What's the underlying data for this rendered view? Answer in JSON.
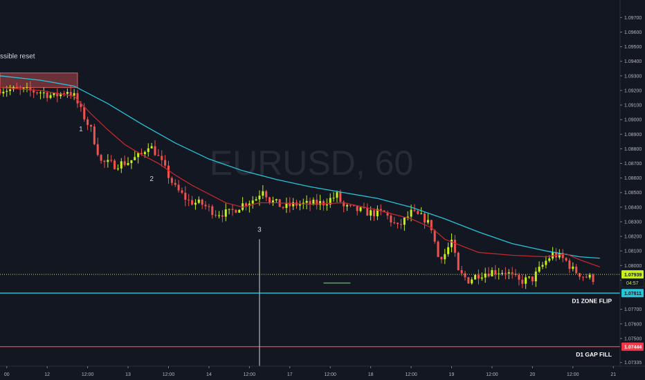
{
  "chart_data": {
    "type": "candlestick",
    "watermark": "EURUSD, 60",
    "y_ticks": [
      "1.09700",
      "1.09600",
      "1.09500",
      "1.09400",
      "1.09300",
      "1.09200",
      "1.09100",
      "1.09000",
      "1.08900",
      "1.08800",
      "1.08700",
      "1.08600",
      "1.08500",
      "1.08400",
      "1.08300",
      "1.08200",
      "1.08100",
      "1.08000",
      "1.07900",
      "1.07700",
      "1.07600",
      "1.07500",
      "1.07335"
    ],
    "y_tick_values": [
      1.097,
      1.096,
      1.095,
      1.094,
      1.093,
      1.092,
      1.091,
      1.09,
      1.089,
      1.088,
      1.087,
      1.086,
      1.085,
      1.084,
      1.083,
      1.082,
      1.081,
      1.08,
      1.079,
      1.077,
      1.076,
      1.075,
      1.07335
    ],
    "ylim": [
      1.0731,
      1.0982
    ],
    "x_ticks": [
      "00",
      "12",
      "12:00",
      "13",
      "12:00",
      "14",
      "12:00",
      "17",
      "12:00",
      "18",
      "12:00",
      "19",
      "12:00",
      "20",
      "12:00",
      "21"
    ],
    "x_tick_positions": [
      0,
      12,
      24,
      36,
      48,
      60,
      72,
      84,
      96,
      108,
      120,
      132,
      144,
      156,
      168,
      180
    ],
    "xlim": [
      -2,
      182
    ],
    "price_labels": [
      {
        "value": 1.07939,
        "text": "1.07939",
        "bg": "#c6f01f",
        "fg": "#131722"
      },
      {
        "value": 1.07811,
        "text": "1.07811",
        "bg": "#26c6da",
        "fg": "#131722"
      },
      {
        "value": 1.07444,
        "text": "1.07444",
        "bg": "#f23645",
        "fg": "#ffffff"
      }
    ],
    "countdown": {
      "text": "04:57",
      "bg": "#131722",
      "fg": "#c6f01f"
    },
    "horizontal_lines": [
      {
        "value": 1.07939,
        "color": "#c6f01f",
        "style": "dotted"
      },
      {
        "value": 1.07811,
        "color": "#26c6da",
        "style": "solid",
        "label": "D1 ZONE FLIP"
      },
      {
        "value": 1.07444,
        "color": "#f23645",
        "style": "solid",
        "label": "D1 GAP FILL"
      }
    ],
    "annotations": [
      {
        "text": "1",
        "x": 22,
        "y": 1.0892
      },
      {
        "text": "2",
        "x": 43,
        "y": 1.0858
      },
      {
        "text": "3",
        "x": 75,
        "y": 1.0823
      },
      {
        "text": "ssible reset",
        "x": -2,
        "y": 1.0942
      }
    ],
    "zone_box": {
      "x0": -2,
      "x1": 21,
      "y0": 1.0922,
      "y1": 1.0932,
      "color": "#b2474c"
    },
    "vertical_line": {
      "x": 75,
      "y_top": 1.0818,
      "color": "#b2b5be"
    },
    "green_segment": {
      "x0": 94,
      "x1": 102,
      "y": 1.0788,
      "color": "#4caf50"
    },
    "ma_teal": {
      "color": "#26c6da",
      "points": [
        [
          -2,
          1.093
        ],
        [
          10,
          1.0927
        ],
        [
          20,
          1.0923
        ],
        [
          30,
          1.0911
        ],
        [
          40,
          1.0897
        ],
        [
          50,
          1.0884
        ],
        [
          60,
          1.0873
        ],
        [
          70,
          1.0865
        ],
        [
          80,
          1.0859
        ],
        [
          90,
          1.0854
        ],
        [
          100,
          1.085
        ],
        [
          110,
          1.0846
        ],
        [
          120,
          1.084
        ],
        [
          130,
          1.0832
        ],
        [
          140,
          1.0823
        ],
        [
          150,
          1.0815
        ],
        [
          160,
          1.081
        ],
        [
          170,
          1.0806
        ],
        [
          176,
          1.0805
        ]
      ]
    },
    "ma_red": {
      "color": "#c2272d",
      "points": [
        [
          -2,
          1.0922
        ],
        [
          10,
          1.092
        ],
        [
          20,
          1.0916
        ],
        [
          25,
          1.0904
        ],
        [
          30,
          1.0893
        ],
        [
          35,
          1.0883
        ],
        [
          40,
          1.0876
        ],
        [
          45,
          1.087
        ],
        [
          50,
          1.0862
        ],
        [
          55,
          1.0855
        ],
        [
          60,
          1.0849
        ],
        [
          65,
          1.0843
        ],
        [
          70,
          1.084
        ],
        [
          75,
          1.0843
        ],
        [
          80,
          1.0843
        ],
        [
          90,
          1.0842
        ],
        [
          100,
          1.0843
        ],
        [
          110,
          1.0838
        ],
        [
          120,
          1.0832
        ],
        [
          126,
          1.0826
        ],
        [
          130,
          1.0818
        ],
        [
          140,
          1.0809
        ],
        [
          150,
          1.0807
        ],
        [
          160,
          1.0806
        ],
        [
          166,
          1.0808
        ],
        [
          170,
          1.0804
        ],
        [
          176,
          1.0799
        ]
      ]
    },
    "anchors": [
      [
        -2,
        1.0921
      ],
      [
        4,
        1.092
      ],
      [
        10,
        1.0919
      ],
      [
        14,
        1.0916
      ],
      [
        18,
        1.092
      ],
      [
        20,
        1.0916
      ],
      [
        22,
        1.0906
      ],
      [
        25,
        1.0893
      ],
      [
        28,
        1.0871
      ],
      [
        32,
        1.0869
      ],
      [
        36,
        1.0871
      ],
      [
        40,
        1.0876
      ],
      [
        42,
        1.0883
      ],
      [
        44,
        1.0878
      ],
      [
        46,
        1.087
      ],
      [
        50,
        1.0853
      ],
      [
        54,
        1.0844
      ],
      [
        58,
        1.0842
      ],
      [
        62,
        1.0836
      ],
      [
        66,
        1.0836
      ],
      [
        70,
        1.0842
      ],
      [
        74,
        1.0846
      ],
      [
        76,
        1.0853
      ],
      [
        78,
        1.0845
      ],
      [
        82,
        1.084
      ],
      [
        86,
        1.0842
      ],
      [
        90,
        1.0842
      ],
      [
        94,
        1.0843
      ],
      [
        98,
        1.0848
      ],
      [
        100,
        1.084
      ],
      [
        104,
        1.0838
      ],
      [
        108,
        1.0836
      ],
      [
        112,
        1.0836
      ],
      [
        116,
        1.0826
      ],
      [
        120,
        1.0836
      ],
      [
        124,
        1.0832
      ],
      [
        126,
        1.0826
      ],
      [
        128,
        1.0806
      ],
      [
        130,
        1.0808
      ],
      [
        132,
        1.0817
      ],
      [
        134,
        1.0795
      ],
      [
        137,
        1.079
      ],
      [
        140,
        1.0794
      ],
      [
        144,
        1.0796
      ],
      [
        148,
        1.0796
      ],
      [
        152,
        1.0789
      ],
      [
        156,
        1.0791
      ],
      [
        160,
        1.0803
      ],
      [
        162,
        1.0808
      ],
      [
        164,
        1.0806
      ],
      [
        166,
        1.0803
      ],
      [
        168,
        1.0797
      ],
      [
        171,
        1.0793
      ],
      [
        174,
        1.0791
      ]
    ]
  }
}
